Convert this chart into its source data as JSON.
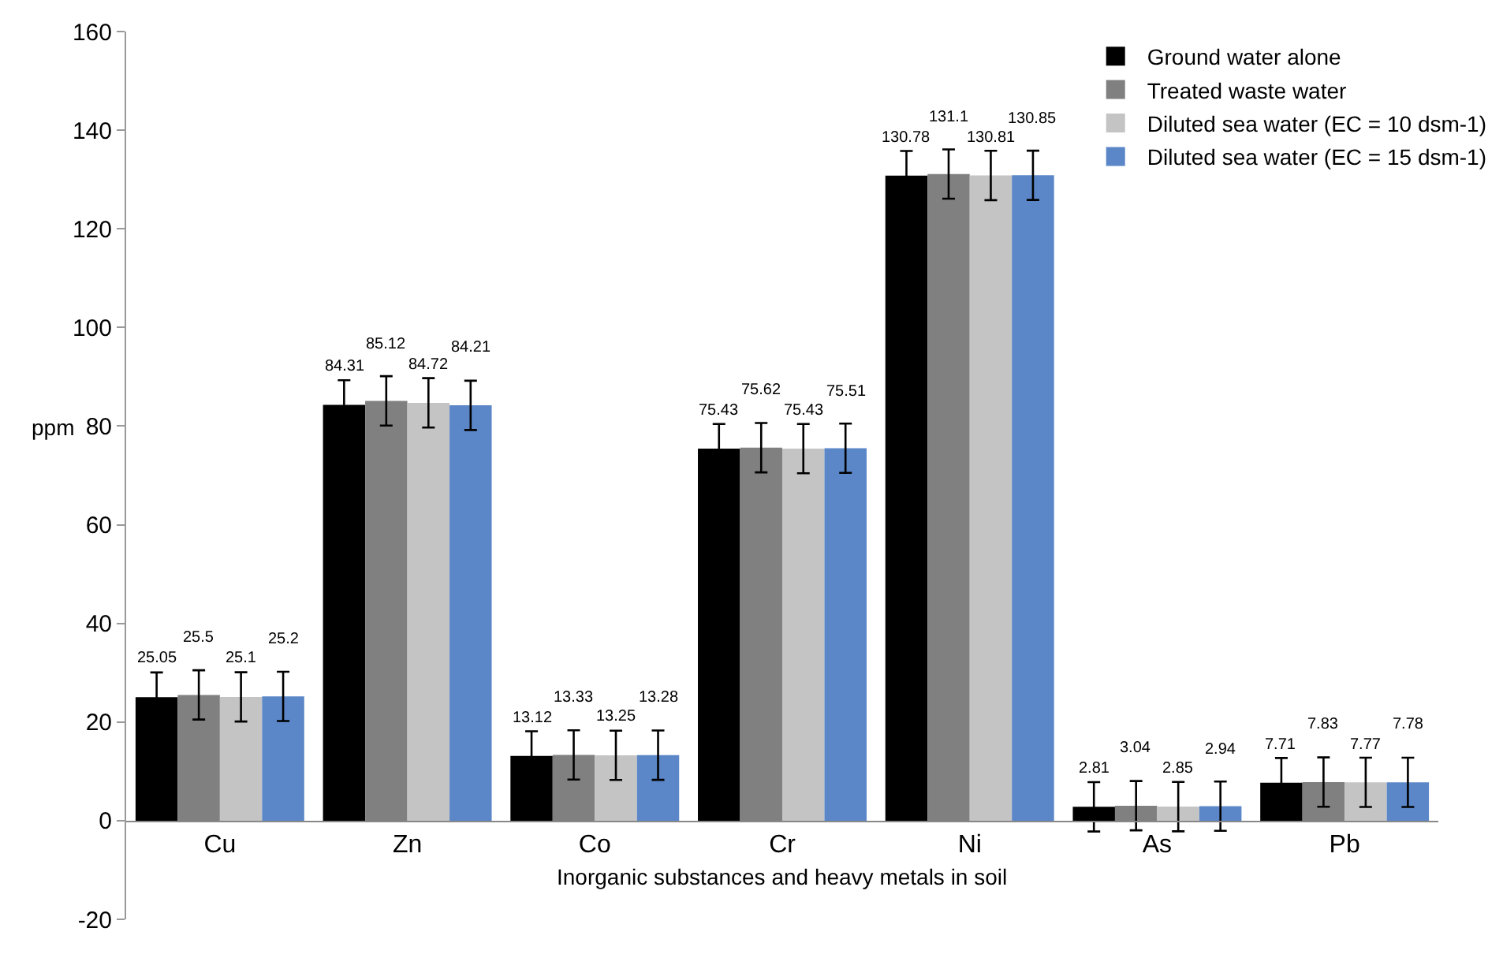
{
  "chart_data": {
    "type": "bar",
    "xlabel": "Inorganic substances and heavy metals in soil",
    "ylabel": "ppm",
    "categories": [
      "Cu",
      "Zn",
      "Co",
      "Cr",
      "Ni",
      "As",
      "Pb"
    ],
    "series": [
      {
        "name": "Ground water alone",
        "color": "#000000",
        "values": [
          25.05,
          84.31,
          13.12,
          75.43,
          130.78,
          2.81,
          7.71
        ],
        "errors": [
          5,
          5,
          5,
          5,
          5,
          5,
          5
        ]
      },
      {
        "name": "Treated waste water",
        "color": "#808080",
        "values": [
          25.5,
          85.12,
          13.33,
          75.62,
          131.1,
          3.04,
          7.83
        ],
        "errors": [
          5,
          5,
          5,
          5,
          5,
          5,
          5
        ]
      },
      {
        "name": "Diluted sea water (EC = 10 dsm-1)",
        "color": "#c4c4c4",
        "values": [
          25.1,
          84.72,
          13.25,
          75.43,
          130.81,
          2.85,
          7.77
        ],
        "errors": [
          5,
          5,
          5,
          5,
          5,
          5,
          5
        ]
      },
      {
        "name": "Diluted sea water (EC = 15 dsm-1)",
        "color": "#5b87c8",
        "values": [
          25.2,
          84.21,
          13.28,
          75.51,
          130.85,
          2.94,
          7.78
        ],
        "errors": [
          5,
          5,
          5,
          5,
          5,
          5,
          5
        ]
      }
    ],
    "ylim": [
      -20,
      160
    ],
    "yticks": [
      -20,
      0,
      20,
      40,
      60,
      80,
      100,
      120,
      140,
      160
    ],
    "data_labels": true,
    "grid": false,
    "legend": "top right"
  }
}
